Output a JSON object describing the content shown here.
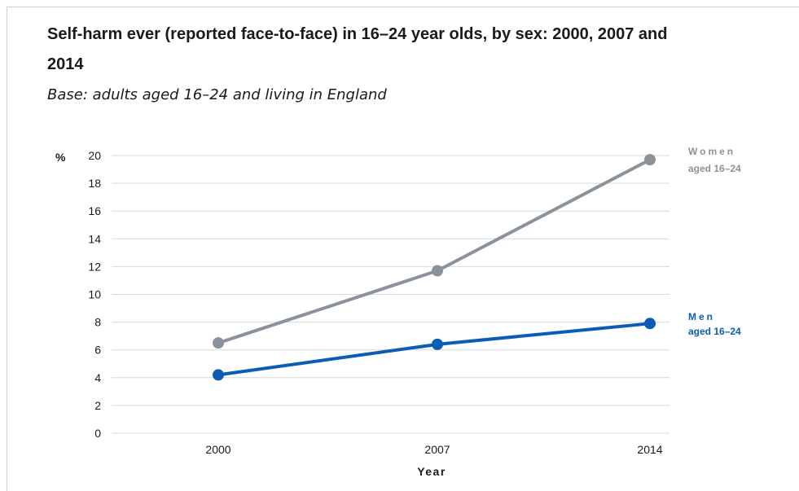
{
  "title": "Self-harm ever (reported face-to-face) in 16–24 year olds, by sex: 2000, 2007 and 2014",
  "subtitle": "Base: adults aged 16–24 and living in England",
  "chart_data": {
    "type": "line",
    "title": "Self-harm ever (reported face-to-face) in 16–24 year olds, by sex: 2000, 2007 and 2014",
    "subtitle": "Base: adults aged 16–24 and living in England",
    "xlabel": "Year",
    "ylabel": "%",
    "categories": [
      "2000",
      "2007",
      "2014"
    ],
    "ylim": [
      0,
      20
    ],
    "yticks": [
      0,
      2,
      4,
      6,
      8,
      10,
      12,
      14,
      16,
      18,
      20
    ],
    "grid": "horizontal",
    "legend": "right",
    "series": [
      {
        "name": "Women aged 16–24",
        "label_line1": "Women",
        "label_line2": "aged 16–24",
        "color": "#8a939c",
        "values": [
          6.5,
          11.7,
          19.7
        ]
      },
      {
        "name": "Men aged 16–24",
        "label_line1": "Men",
        "label_line2": "aged 16–24",
        "color": "#0a5cb5",
        "values": [
          4.2,
          6.4,
          7.9
        ]
      }
    ]
  }
}
